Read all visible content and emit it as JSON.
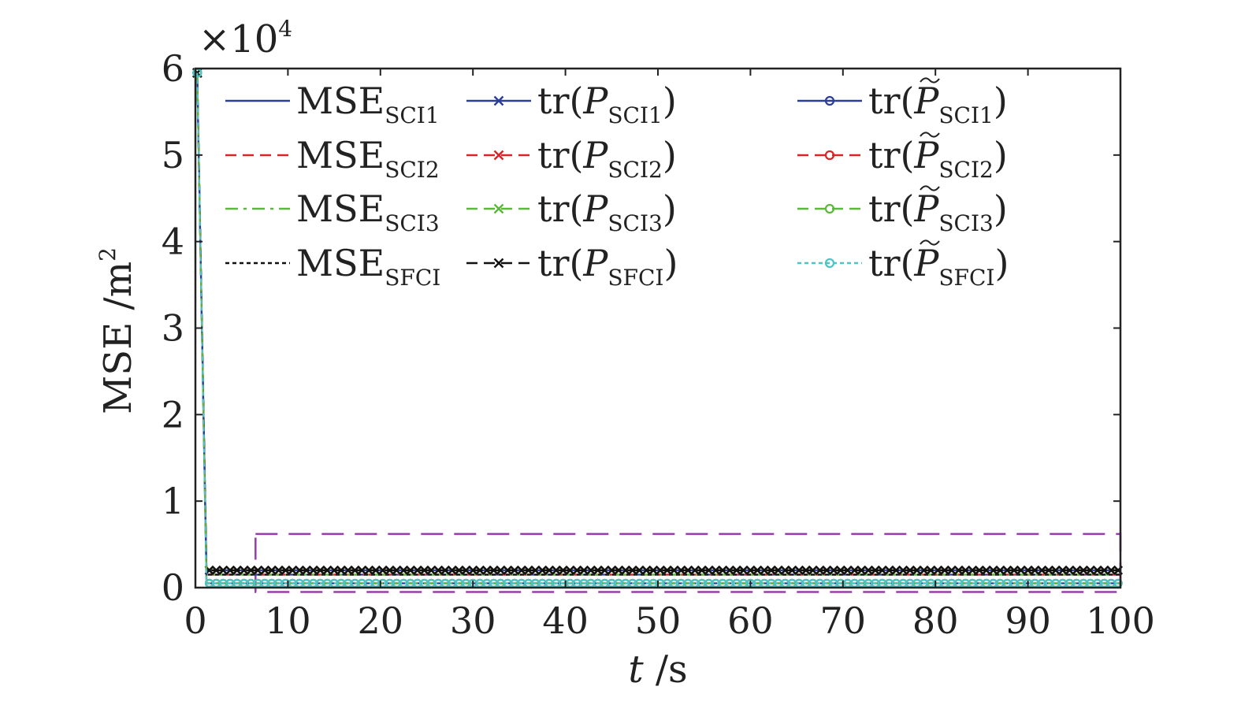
{
  "chart_data": {
    "type": "line",
    "title": "",
    "xlabel_main": "t",
    "xlabel_unit": " /s",
    "ylabel_main": "MSE /m",
    "ylabel_sup": "2",
    "y_multiplier_base": "×10",
    "y_multiplier_exp": "4",
    "xlim": [
      0,
      100
    ],
    "ylim": [
      0,
      60000
    ],
    "xticks": [
      "0",
      "10",
      "20",
      "30",
      "40",
      "50",
      "60",
      "70",
      "80",
      "90",
      "100"
    ],
    "yticks": [
      "0",
      "1",
      "2",
      "3",
      "4",
      "5",
      "6"
    ],
    "grid": false,
    "legend_position": "top",
    "x": [
      0.2,
      1.2,
      2,
      10,
      20,
      30,
      40,
      50,
      60,
      70,
      80,
      90,
      100
    ],
    "series": [
      {
        "name": "MSE",
        "sub": "SCI1",
        "prefix": "",
        "suffix": "",
        "tilde": false,
        "style": "solid",
        "marker": "none",
        "color": "#2b3f96",
        "values": [
          59500,
          1500,
          1500,
          1500,
          1500,
          1500,
          1500,
          1500,
          1500,
          1500,
          1500,
          1500,
          1500
        ]
      },
      {
        "name": "MSE",
        "sub": "SCI2",
        "prefix": "",
        "suffix": "",
        "tilde": false,
        "style": "dashed",
        "marker": "none",
        "color": "#d9242a",
        "values": [
          59500,
          1500,
          1500,
          1500,
          1500,
          1500,
          1500,
          1500,
          1500,
          1500,
          1500,
          1500,
          1500
        ]
      },
      {
        "name": "MSE",
        "sub": "SCI3",
        "prefix": "",
        "suffix": "",
        "tilde": false,
        "style": "dashdot",
        "marker": "none",
        "color": "#5bb83a",
        "values": [
          59500,
          1500,
          1500,
          1500,
          1500,
          1500,
          1500,
          1500,
          1500,
          1500,
          1500,
          1500,
          1500
        ]
      },
      {
        "name": "MSE",
        "sub": "SFCI",
        "prefix": "",
        "suffix": "",
        "tilde": false,
        "style": "dotted",
        "marker": "none",
        "color": "#111111",
        "values": [
          59500,
          1500,
          1500,
          1500,
          1500,
          1500,
          1500,
          1500,
          1500,
          1500,
          1500,
          1500,
          1500
        ]
      },
      {
        "name": "P",
        "sub": "SCI1",
        "prefix": "tr(",
        "suffix": ")",
        "tilde": false,
        "style": "solid",
        "marker": "x",
        "color": "#2b3f96",
        "values": [
          59500,
          2000,
          2000,
          2000,
          2000,
          2000,
          2000,
          2000,
          2000,
          2000,
          2000,
          2000,
          2000
        ]
      },
      {
        "name": "P",
        "sub": "SCI2",
        "prefix": "tr(",
        "suffix": ")",
        "tilde": false,
        "style": "dashed",
        "marker": "x",
        "color": "#d9242a",
        "values": [
          59500,
          2000,
          2000,
          2000,
          2000,
          2000,
          2000,
          2000,
          2000,
          2000,
          2000,
          2000,
          2000
        ]
      },
      {
        "name": "P",
        "sub": "SCI3",
        "prefix": "tr(",
        "suffix": ")",
        "tilde": false,
        "style": "dashed",
        "marker": "x",
        "color": "#5bb83a",
        "values": [
          59500,
          2000,
          2000,
          2000,
          2000,
          2000,
          2000,
          2000,
          2000,
          2000,
          2000,
          2000,
          2000
        ]
      },
      {
        "name": "P",
        "sub": "SFCI",
        "prefix": "tr(",
        "suffix": ")",
        "tilde": false,
        "style": "dashed",
        "marker": "x",
        "color": "#111111",
        "values": [
          59500,
          2000,
          2000,
          2000,
          2000,
          2000,
          2000,
          2000,
          2000,
          2000,
          2000,
          2000,
          2000
        ]
      },
      {
        "name": "P",
        "sub": "SCI1",
        "prefix": "tr(",
        "suffix": ")",
        "tilde": true,
        "style": "solid",
        "marker": "o",
        "color": "#2b3f96",
        "values": [
          59500,
          500,
          500,
          500,
          500,
          500,
          500,
          500,
          500,
          500,
          500,
          500,
          500
        ]
      },
      {
        "name": "P",
        "sub": "SCI2",
        "prefix": "tr(",
        "suffix": ")",
        "tilde": true,
        "style": "dashed",
        "marker": "o",
        "color": "#d9242a",
        "values": [
          59500,
          500,
          500,
          500,
          500,
          500,
          500,
          500,
          500,
          500,
          500,
          500,
          500
        ]
      },
      {
        "name": "P",
        "sub": "SCI3",
        "prefix": "tr(",
        "suffix": ")",
        "tilde": true,
        "style": "dashed",
        "marker": "o",
        "color": "#5bb83a",
        "values": [
          59500,
          500,
          500,
          500,
          500,
          500,
          500,
          500,
          500,
          500,
          500,
          500,
          500
        ]
      },
      {
        "name": "P",
        "sub": "SFCI",
        "prefix": "tr(",
        "suffix": ")",
        "tilde": true,
        "style": "dotted",
        "marker": "o",
        "color": "#4cc4c4",
        "values": [
          59500,
          500,
          500,
          500,
          500,
          500,
          500,
          500,
          500,
          500,
          500,
          500,
          500
        ]
      }
    ],
    "annotations": [
      {
        "type": "dashed-rectangle",
        "x_range": [
          6.5,
          100
        ],
        "y_range": [
          -500,
          6200
        ],
        "color": "#9a3ab0"
      }
    ]
  }
}
